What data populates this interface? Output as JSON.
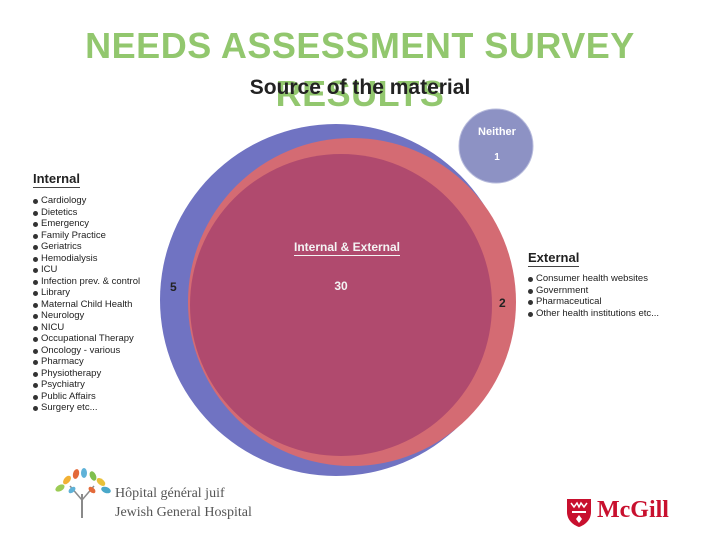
{
  "slide": {
    "title_line1": "NEEDS ASSESSMENT SURVEY",
    "title_line2": "RESULTS",
    "diagram_title": "Source of the material"
  },
  "venn": {
    "neither": {
      "label": "Neither",
      "count": "1"
    },
    "internal": {
      "label": "Internal",
      "count": "5",
      "color": "#7073c2",
      "items": [
        "Cardiology",
        "Dietetics",
        "Emergency",
        "Family Practice",
        "Geriatrics",
        "Hemodialysis",
        "ICU",
        "Infection prev. & control",
        "Library",
        "Maternal Child Health",
        "Neurology",
        "NICU",
        "Occupational Therapy",
        "Oncology - various",
        "Pharmacy",
        "Physiotherapy",
        "Psychiatry",
        "Public Affairs",
        "Surgery etc..."
      ]
    },
    "external": {
      "label": "External",
      "count": "2",
      "color": "#d46b73",
      "items": [
        "Consumer health websites",
        "Government",
        "Pharmaceutical",
        "Other health institutions etc..."
      ]
    },
    "both": {
      "label": "Internal & External",
      "count": "30",
      "color": "#b04a6e"
    },
    "neither_color": "#8d92c4"
  },
  "logos": {
    "hospital_fr": "Hôpital général juif",
    "hospital_en": "Jewish General Hospital",
    "university": "McGill"
  }
}
